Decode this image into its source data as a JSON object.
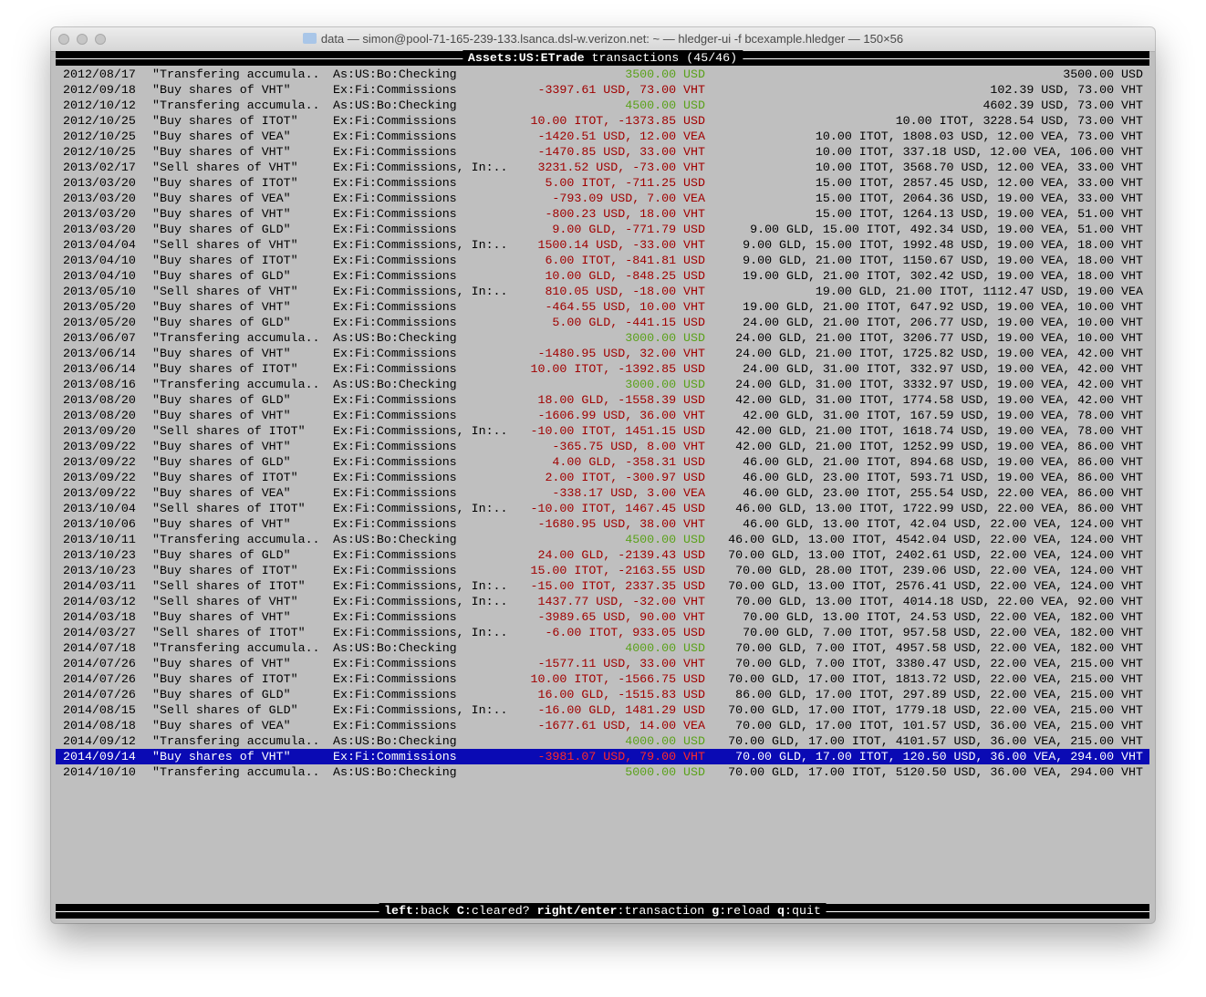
{
  "window": {
    "title": "data — simon@pool-71-165-239-133.lsanca.dsl-w.verizon.net: ~ — hledger-ui -f bcexample.hledger — 150×56"
  },
  "header": {
    "account": "Assets:US:ETrade",
    "title_suffix": " transactions (45/46)"
  },
  "colors": {
    "positive": "#5aa11a",
    "negative": "#a00000",
    "selected_bg": "#0a0ab4",
    "selected_negative": "#ff2a2a",
    "terminal_bg": "#bfbfbf"
  },
  "rows": [
    {
      "date": "2012/08/17",
      "desc": "\"Transfering accumula..",
      "acct": "As:US:Bo:Checking",
      "amt": "3500.00 USD",
      "bal": "3500.00 USD",
      "positive": true
    },
    {
      "date": "2012/09/18",
      "desc": "\"Buy shares of VHT\"",
      "acct": "Ex:Fi:Commissions",
      "amt": "-3397.61 USD, 73.00 VHT",
      "bal": "102.39 USD, 73.00 VHT",
      "positive": false
    },
    {
      "date": "2012/10/12",
      "desc": "\"Transfering accumula..",
      "acct": "As:US:Bo:Checking",
      "amt": "4500.00 USD",
      "bal": "4602.39 USD, 73.00 VHT",
      "positive": true
    },
    {
      "date": "2012/10/25",
      "desc": "\"Buy shares of ITOT\"",
      "acct": "Ex:Fi:Commissions",
      "amt": "10.00 ITOT, -1373.85 USD",
      "bal": "10.00 ITOT, 3228.54 USD, 73.00 VHT",
      "positive": false
    },
    {
      "date": "2012/10/25",
      "desc": "\"Buy shares of VEA\"",
      "acct": "Ex:Fi:Commissions",
      "amt": "-1420.51 USD, 12.00 VEA",
      "bal": "10.00 ITOT, 1808.03 USD, 12.00 VEA, 73.00 VHT",
      "positive": false
    },
    {
      "date": "2012/10/25",
      "desc": "\"Buy shares of VHT\"",
      "acct": "Ex:Fi:Commissions",
      "amt": "-1470.85 USD, 33.00 VHT",
      "bal": "10.00 ITOT, 337.18 USD, 12.00 VEA, 106.00 VHT",
      "positive": false
    },
    {
      "date": "2013/02/17",
      "desc": "\"Sell shares of VHT\"",
      "acct": "Ex:Fi:Commissions, In:..",
      "amt": "3231.52 USD, -73.00 VHT",
      "bal": "10.00 ITOT, 3568.70 USD, 12.00 VEA, 33.00 VHT",
      "positive": false
    },
    {
      "date": "2013/03/20",
      "desc": "\"Buy shares of ITOT\"",
      "acct": "Ex:Fi:Commissions",
      "amt": "5.00 ITOT, -711.25 USD",
      "bal": "15.00 ITOT, 2857.45 USD, 12.00 VEA, 33.00 VHT",
      "positive": false
    },
    {
      "date": "2013/03/20",
      "desc": "\"Buy shares of VEA\"",
      "acct": "Ex:Fi:Commissions",
      "amt": "-793.09 USD, 7.00 VEA",
      "bal": "15.00 ITOT, 2064.36 USD, 19.00 VEA, 33.00 VHT",
      "positive": false
    },
    {
      "date": "2013/03/20",
      "desc": "\"Buy shares of VHT\"",
      "acct": "Ex:Fi:Commissions",
      "amt": "-800.23 USD, 18.00 VHT",
      "bal": "15.00 ITOT, 1264.13 USD, 19.00 VEA, 51.00 VHT",
      "positive": false
    },
    {
      "date": "2013/03/20",
      "desc": "\"Buy shares of GLD\"",
      "acct": "Ex:Fi:Commissions",
      "amt": "9.00 GLD, -771.79 USD",
      "bal": "9.00 GLD, 15.00 ITOT, 492.34 USD, 19.00 VEA, 51.00 VHT",
      "positive": false
    },
    {
      "date": "2013/04/04",
      "desc": "\"Sell shares of VHT\"",
      "acct": "Ex:Fi:Commissions, In:..",
      "amt": "1500.14 USD, -33.00 VHT",
      "bal": "9.00 GLD, 15.00 ITOT, 1992.48 USD, 19.00 VEA, 18.00 VHT",
      "positive": false
    },
    {
      "date": "2013/04/10",
      "desc": "\"Buy shares of ITOT\"",
      "acct": "Ex:Fi:Commissions",
      "amt": "6.00 ITOT, -841.81 USD",
      "bal": "9.00 GLD, 21.00 ITOT, 1150.67 USD, 19.00 VEA, 18.00 VHT",
      "positive": false
    },
    {
      "date": "2013/04/10",
      "desc": "\"Buy shares of GLD\"",
      "acct": "Ex:Fi:Commissions",
      "amt": "10.00 GLD, -848.25 USD",
      "bal": "19.00 GLD, 21.00 ITOT, 302.42 USD, 19.00 VEA, 18.00 VHT",
      "positive": false
    },
    {
      "date": "2013/05/10",
      "desc": "\"Sell shares of VHT\"",
      "acct": "Ex:Fi:Commissions, In:..",
      "amt": "810.05 USD, -18.00 VHT",
      "bal": "19.00 GLD, 21.00 ITOT, 1112.47 USD, 19.00 VEA",
      "positive": false
    },
    {
      "date": "2013/05/20",
      "desc": "\"Buy shares of VHT\"",
      "acct": "Ex:Fi:Commissions",
      "amt": "-464.55 USD, 10.00 VHT",
      "bal": "19.00 GLD, 21.00 ITOT, 647.92 USD, 19.00 VEA, 10.00 VHT",
      "positive": false
    },
    {
      "date": "2013/05/20",
      "desc": "\"Buy shares of GLD\"",
      "acct": "Ex:Fi:Commissions",
      "amt": "5.00 GLD, -441.15 USD",
      "bal": "24.00 GLD, 21.00 ITOT, 206.77 USD, 19.00 VEA, 10.00 VHT",
      "positive": false
    },
    {
      "date": "2013/06/07",
      "desc": "\"Transfering accumula..",
      "acct": "As:US:Bo:Checking",
      "amt": "3000.00 USD",
      "bal": "24.00 GLD, 21.00 ITOT, 3206.77 USD, 19.00 VEA, 10.00 VHT",
      "positive": true
    },
    {
      "date": "2013/06/14",
      "desc": "\"Buy shares of VHT\"",
      "acct": "Ex:Fi:Commissions",
      "amt": "-1480.95 USD, 32.00 VHT",
      "bal": "24.00 GLD, 21.00 ITOT, 1725.82 USD, 19.00 VEA, 42.00 VHT",
      "positive": false
    },
    {
      "date": "2013/06/14",
      "desc": "\"Buy shares of ITOT\"",
      "acct": "Ex:Fi:Commissions",
      "amt": "10.00 ITOT, -1392.85 USD",
      "bal": "24.00 GLD, 31.00 ITOT, 332.97 USD, 19.00 VEA, 42.00 VHT",
      "positive": false
    },
    {
      "date": "2013/08/16",
      "desc": "\"Transfering accumula..",
      "acct": "As:US:Bo:Checking",
      "amt": "3000.00 USD",
      "bal": "24.00 GLD, 31.00 ITOT, 3332.97 USD, 19.00 VEA, 42.00 VHT",
      "positive": true
    },
    {
      "date": "2013/08/20",
      "desc": "\"Buy shares of GLD\"",
      "acct": "Ex:Fi:Commissions",
      "amt": "18.00 GLD, -1558.39 USD",
      "bal": "42.00 GLD, 31.00 ITOT, 1774.58 USD, 19.00 VEA, 42.00 VHT",
      "positive": false
    },
    {
      "date": "2013/08/20",
      "desc": "\"Buy shares of VHT\"",
      "acct": "Ex:Fi:Commissions",
      "amt": "-1606.99 USD, 36.00 VHT",
      "bal": "42.00 GLD, 31.00 ITOT, 167.59 USD, 19.00 VEA, 78.00 VHT",
      "positive": false
    },
    {
      "date": "2013/09/20",
      "desc": "\"Sell shares of ITOT\"",
      "acct": "Ex:Fi:Commissions, In:..",
      "amt": "-10.00 ITOT, 1451.15 USD",
      "bal": "42.00 GLD, 21.00 ITOT, 1618.74 USD, 19.00 VEA, 78.00 VHT",
      "positive": false
    },
    {
      "date": "2013/09/22",
      "desc": "\"Buy shares of VHT\"",
      "acct": "Ex:Fi:Commissions",
      "amt": "-365.75 USD, 8.00 VHT",
      "bal": "42.00 GLD, 21.00 ITOT, 1252.99 USD, 19.00 VEA, 86.00 VHT",
      "positive": false
    },
    {
      "date": "2013/09/22",
      "desc": "\"Buy shares of GLD\"",
      "acct": "Ex:Fi:Commissions",
      "amt": "4.00 GLD, -358.31 USD",
      "bal": "46.00 GLD, 21.00 ITOT, 894.68 USD, 19.00 VEA, 86.00 VHT",
      "positive": false
    },
    {
      "date": "2013/09/22",
      "desc": "\"Buy shares of ITOT\"",
      "acct": "Ex:Fi:Commissions",
      "amt": "2.00 ITOT, -300.97 USD",
      "bal": "46.00 GLD, 23.00 ITOT, 593.71 USD, 19.00 VEA, 86.00 VHT",
      "positive": false
    },
    {
      "date": "2013/09/22",
      "desc": "\"Buy shares of VEA\"",
      "acct": "Ex:Fi:Commissions",
      "amt": "-338.17 USD, 3.00 VEA",
      "bal": "46.00 GLD, 23.00 ITOT, 255.54 USD, 22.00 VEA, 86.00 VHT",
      "positive": false
    },
    {
      "date": "2013/10/04",
      "desc": "\"Sell shares of ITOT\"",
      "acct": "Ex:Fi:Commissions, In:..",
      "amt": "-10.00 ITOT, 1467.45 USD",
      "bal": "46.00 GLD, 13.00 ITOT, 1722.99 USD, 22.00 VEA, 86.00 VHT",
      "positive": false
    },
    {
      "date": "2013/10/06",
      "desc": "\"Buy shares of VHT\"",
      "acct": "Ex:Fi:Commissions",
      "amt": "-1680.95 USD, 38.00 VHT",
      "bal": "46.00 GLD, 13.00 ITOT, 42.04 USD, 22.00 VEA, 124.00 VHT",
      "positive": false
    },
    {
      "date": "2013/10/11",
      "desc": "\"Transfering accumula..",
      "acct": "As:US:Bo:Checking",
      "amt": "4500.00 USD",
      "bal": "46.00 GLD, 13.00 ITOT, 4542.04 USD, 22.00 VEA, 124.00 VHT",
      "positive": true
    },
    {
      "date": "2013/10/23",
      "desc": "\"Buy shares of GLD\"",
      "acct": "Ex:Fi:Commissions",
      "amt": "24.00 GLD, -2139.43 USD",
      "bal": "70.00 GLD, 13.00 ITOT, 2402.61 USD, 22.00 VEA, 124.00 VHT",
      "positive": false
    },
    {
      "date": "2013/10/23",
      "desc": "\"Buy shares of ITOT\"",
      "acct": "Ex:Fi:Commissions",
      "amt": "15.00 ITOT, -2163.55 USD",
      "bal": "70.00 GLD, 28.00 ITOT, 239.06 USD, 22.00 VEA, 124.00 VHT",
      "positive": false
    },
    {
      "date": "2014/03/11",
      "desc": "\"Sell shares of ITOT\"",
      "acct": "Ex:Fi:Commissions, In:..",
      "amt": "-15.00 ITOT, 2337.35 USD",
      "bal": "70.00 GLD, 13.00 ITOT, 2576.41 USD, 22.00 VEA, 124.00 VHT",
      "positive": false
    },
    {
      "date": "2014/03/12",
      "desc": "\"Sell shares of VHT\"",
      "acct": "Ex:Fi:Commissions, In:..",
      "amt": "1437.77 USD, -32.00 VHT",
      "bal": "70.00 GLD, 13.00 ITOT, 4014.18 USD, 22.00 VEA, 92.00 VHT",
      "positive": false
    },
    {
      "date": "2014/03/18",
      "desc": "\"Buy shares of VHT\"",
      "acct": "Ex:Fi:Commissions",
      "amt": "-3989.65 USD, 90.00 VHT",
      "bal": "70.00 GLD, 13.00 ITOT, 24.53 USD, 22.00 VEA, 182.00 VHT",
      "positive": false
    },
    {
      "date": "2014/03/27",
      "desc": "\"Sell shares of ITOT\"",
      "acct": "Ex:Fi:Commissions, In:..",
      "amt": "-6.00 ITOT, 933.05 USD",
      "bal": "70.00 GLD, 7.00 ITOT, 957.58 USD, 22.00 VEA, 182.00 VHT",
      "positive": false
    },
    {
      "date": "2014/07/18",
      "desc": "\"Transfering accumula..",
      "acct": "As:US:Bo:Checking",
      "amt": "4000.00 USD",
      "bal": "70.00 GLD, 7.00 ITOT, 4957.58 USD, 22.00 VEA, 182.00 VHT",
      "positive": true
    },
    {
      "date": "2014/07/26",
      "desc": "\"Buy shares of VHT\"",
      "acct": "Ex:Fi:Commissions",
      "amt": "-1577.11 USD, 33.00 VHT",
      "bal": "70.00 GLD, 7.00 ITOT, 3380.47 USD, 22.00 VEA, 215.00 VHT",
      "positive": false
    },
    {
      "date": "2014/07/26",
      "desc": "\"Buy shares of ITOT\"",
      "acct": "Ex:Fi:Commissions",
      "amt": "10.00 ITOT, -1566.75 USD",
      "bal": "70.00 GLD, 17.00 ITOT, 1813.72 USD, 22.00 VEA, 215.00 VHT",
      "positive": false
    },
    {
      "date": "2014/07/26",
      "desc": "\"Buy shares of GLD\"",
      "acct": "Ex:Fi:Commissions",
      "amt": "16.00 GLD, -1515.83 USD",
      "bal": "86.00 GLD, 17.00 ITOT, 297.89 USD, 22.00 VEA, 215.00 VHT",
      "positive": false
    },
    {
      "date": "2014/08/15",
      "desc": "\"Sell shares of GLD\"",
      "acct": "Ex:Fi:Commissions, In:..",
      "amt": "-16.00 GLD, 1481.29 USD",
      "bal": "70.00 GLD, 17.00 ITOT, 1779.18 USD, 22.00 VEA, 215.00 VHT",
      "positive": false
    },
    {
      "date": "2014/08/18",
      "desc": "\"Buy shares of VEA\"",
      "acct": "Ex:Fi:Commissions",
      "amt": "-1677.61 USD, 14.00 VEA",
      "bal": "70.00 GLD, 17.00 ITOT, 101.57 USD, 36.00 VEA, 215.00 VHT",
      "positive": false
    },
    {
      "date": "2014/09/12",
      "desc": "\"Transfering accumula..",
      "acct": "As:US:Bo:Checking",
      "amt": "4000.00 USD",
      "bal": "70.00 GLD, 17.00 ITOT, 4101.57 USD, 36.00 VEA, 215.00 VHT",
      "positive": true
    },
    {
      "date": "2014/09/14",
      "desc": "\"Buy shares of VHT\"",
      "acct": "Ex:Fi:Commissions",
      "amt": "-3981.07 USD, 79.00 VHT",
      "bal": "70.00 GLD, 17.00 ITOT, 120.50 USD, 36.00 VEA, 294.00 VHT",
      "positive": false,
      "selected": true
    },
    {
      "date": "2014/10/10",
      "desc": "\"Transfering accumula..",
      "acct": "As:US:Bo:Checking",
      "amt": "5000.00 USD",
      "bal": "70.00 GLD, 17.00 ITOT, 5120.50 USD, 36.00 VEA, 294.00 VHT",
      "positive": true
    }
  ],
  "footer": [
    {
      "key": "left",
      "label": "back"
    },
    {
      "key": "C",
      "label": "cleared?"
    },
    {
      "key": "right/enter",
      "label": "transaction"
    },
    {
      "key": "g",
      "label": "reload"
    },
    {
      "key": "q",
      "label": "quit"
    }
  ]
}
